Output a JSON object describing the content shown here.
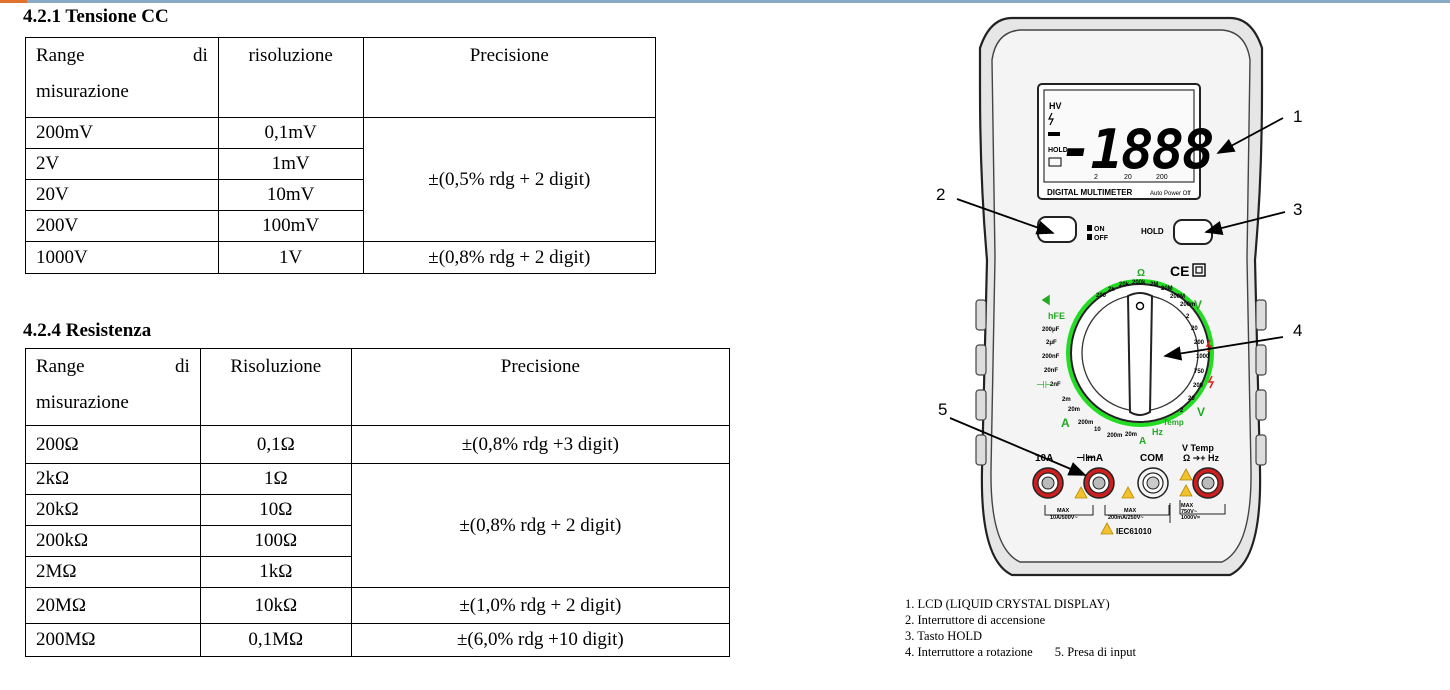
{
  "section1": {
    "title": "4.2.1 Tensione CC",
    "headers": {
      "range_a": "Range",
      "range_b": "di",
      "range_c": "misurazione",
      "resolution": "risoluzione",
      "precision": "Precisione"
    },
    "rows": [
      {
        "range": "200mV",
        "resolution": "0,1mV"
      },
      {
        "range": "2V",
        "resolution": "1mV"
      },
      {
        "range": "20V",
        "resolution": "10mV"
      },
      {
        "range": "200V",
        "resolution": "100mV"
      },
      {
        "range": "1000V",
        "resolution": "1V"
      }
    ],
    "precision_group": "±(0,5% rdg + 2 digit)",
    "precision_last": "±(0,8% rdg + 2 digit)"
  },
  "section2": {
    "title": "4.2.4 Resistenza",
    "headers": {
      "range_a": "Range",
      "range_b": "di",
      "range_c": "misurazione",
      "resolution": "Risoluzione",
      "precision": "Precisione"
    },
    "rows": [
      {
        "range": "200Ω",
        "resolution": "0,1Ω"
      },
      {
        "range": "2kΩ",
        "resolution": "1Ω"
      },
      {
        "range": "20kΩ",
        "resolution": "10Ω"
      },
      {
        "range": "200kΩ",
        "resolution": "100Ω"
      },
      {
        "range": "2MΩ",
        "resolution": "1kΩ"
      },
      {
        "range": "20MΩ",
        "resolution": "10kΩ"
      },
      {
        "range": "200MΩ",
        "resolution": "0,1MΩ"
      }
    ],
    "precision_first": "±(0,8% rdg +3 digit)",
    "precision_group": "±(0,8% rdg + 2 digit)",
    "precision_20m": "±(1,0% rdg + 2 digit)",
    "precision_200m": "±(6,0% rdg +10 digit)"
  },
  "meter": {
    "display_digits": "-1888",
    "hv": "HV",
    "hold_indicator": "HOLD",
    "scale_labels": [
      "2",
      "20",
      "200"
    ],
    "brand_text": "DIGITAL MULTIMETER",
    "auto_off_text": "Auto Power Off",
    "on_label": "ON",
    "off_label": "OFF",
    "hold_button": "HOLD",
    "ce_mark": "CE",
    "dial_labels": {
      "ohm": "Ω",
      "r200": "200",
      "r2k": "2k",
      "r20k": "20k",
      "r200k": "200k",
      "r2M": "2M",
      "r20M": "20M",
      "r200M": "200M",
      "dcv_200m": "200m",
      "dcv_2": "2",
      "dcv_20": "20",
      "dcv_200": "200",
      "dcv_1000": "1000",
      "acv_750": "750",
      "acv_200": "200",
      "acv_20": "20",
      "acv_2": "2",
      "temp": "Temp",
      "hz": "Hz",
      "a20m": "20m",
      "a200m": "200m",
      "a10": "10",
      "m2m": "2m",
      "m20m": "20m",
      "m200m": "200m",
      "hfe": "hFE",
      "c200u": "200μF",
      "c2u": "2μF",
      "c200n": "200nF",
      "c20n": "20nF",
      "c2n": "2nF"
    },
    "jacks": {
      "a10": "10A",
      "ma": "mA",
      "com": "COM",
      "vtemp": "V Temp",
      "vsym": "Ω ➔+ Hz"
    },
    "max_notes": {
      "a10_1": "MAX",
      "a10_2": "10A/500V~",
      "ma_1": "MAX",
      "ma_2": "200mA/250V~",
      "v_1": "MAX",
      "v_2": "750V~",
      "v_3": "1000V="
    },
    "standard": "IEC61010",
    "callouts": [
      "1",
      "2",
      "3",
      "4",
      "5"
    ]
  },
  "legend": {
    "line1": "1. LCD (LIQUID CRYSTAL DISPLAY)",
    "line2": "2. Interruttore di accensione",
    "line3": "3. Tasto HOLD",
    "line4a": "4. Interruttore a rotazione",
    "line4b": "5. Presa di input"
  },
  "colors": {
    "accent": "#e0722d",
    "rule": "#8aa9c5",
    "dial_green": "#22dd22",
    "jack_red": "#cc1f1f",
    "warning": "#f2c12e",
    "meter_gray": "#e6e6e6"
  }
}
